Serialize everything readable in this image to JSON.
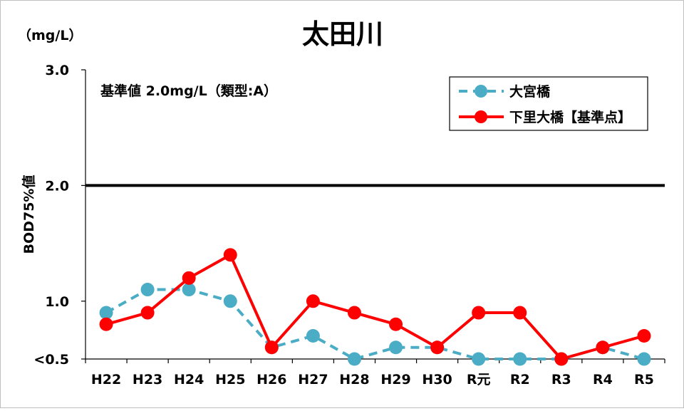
{
  "chart_data": {
    "type": "line",
    "title": "太田川",
    "unit_label": "（mg/L）",
    "ylabel": "BOD75%値",
    "xlabel": "",
    "categories": [
      "H22",
      "H23",
      "H24",
      "H25",
      "H26",
      "H27",
      "H28",
      "H29",
      "H30",
      "R元",
      "R2",
      "R3",
      "R4",
      "R5"
    ],
    "yticks": [
      {
        "value": 0.5,
        "label": "<0.5"
      },
      {
        "value": 1.0,
        "label": "1.0"
      },
      {
        "value": 2.0,
        "label": "2.0"
      },
      {
        "value": 3.0,
        "label": "3.0"
      }
    ],
    "ylim": [
      0.5,
      3.0
    ],
    "grid": false,
    "legend_position": "top-right",
    "standard": {
      "value": 2.0,
      "label": "基準値  2.0mg/L（類型:A）",
      "color": "#000000"
    },
    "series": [
      {
        "name": "大宮橋",
        "color": "#4BACC6",
        "style": "dashed",
        "values": [
          0.9,
          1.1,
          1.1,
          1.0,
          0.6,
          0.7,
          0.5,
          0.6,
          0.6,
          0.5,
          0.5,
          0.5,
          0.6,
          0.5
        ]
      },
      {
        "name": "下里大橋【基準点】",
        "color": "#FF0000",
        "style": "solid",
        "values": [
          0.8,
          0.9,
          1.2,
          1.4,
          0.6,
          1.0,
          0.9,
          0.8,
          0.6,
          0.9,
          0.9,
          0.5,
          0.6,
          0.7
        ]
      }
    ]
  }
}
